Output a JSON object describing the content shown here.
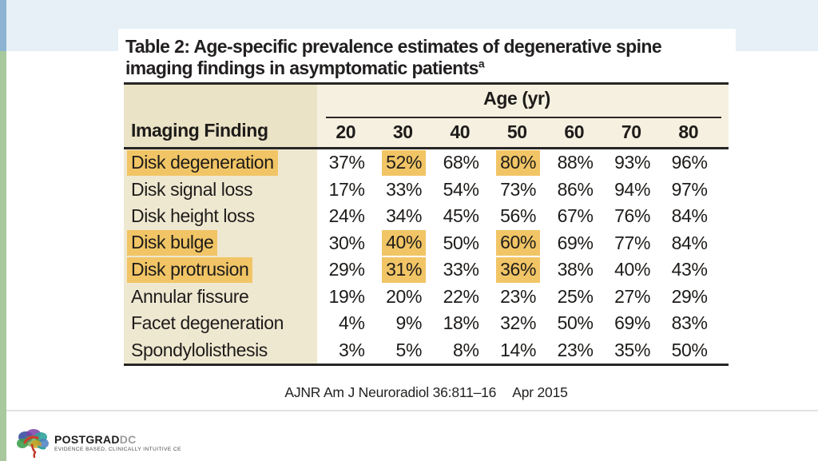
{
  "slide": {
    "table_title_line1": "Table 2: Age-specific prevalence estimates of degenerative spine",
    "table_title_line2": "imaging findings in asymptomatic patients",
    "table_title_footnote_marker": "a",
    "citation_journal": "AJNR Am J Neuroradiol 36:811–16",
    "citation_date": "Apr 2015"
  },
  "logo": {
    "icon": "brain-icon",
    "brand_primary": "POSTGRAD",
    "brand_secondary": "DC",
    "tagline": "EVIDENCE BASED, CLINICALLY INTUITIVE CE"
  },
  "colors": {
    "accent_strip_blue": "#8db4d3",
    "accent_strip_green": "#a8c89e",
    "top_band_blue": "#e6f0f6",
    "header_cream": "#f5f0e0",
    "finding_column_cream": "#efe8d1",
    "highlight_amber": "#f1c566"
  },
  "chart_data": {
    "type": "table",
    "title": "Table 2: Age-specific prevalence estimates of degenerative spine imaging findings in asymptomatic patients",
    "column_group_label": "Age (yr)",
    "row_header_label": "Imaging Finding",
    "columns": [
      "20",
      "30",
      "40",
      "50",
      "60",
      "70",
      "80"
    ],
    "rows": [
      {
        "finding": "Disk degeneration",
        "values": [
          "37%",
          "52%",
          "68%",
          "80%",
          "88%",
          "93%",
          "96%"
        ],
        "label_highlighted": true,
        "highlighted_value_indexes": [
          1,
          3
        ]
      },
      {
        "finding": "Disk signal loss",
        "values": [
          "17%",
          "33%",
          "54%",
          "73%",
          "86%",
          "94%",
          "97%"
        ],
        "label_highlighted": false,
        "highlighted_value_indexes": []
      },
      {
        "finding": "Disk height loss",
        "values": [
          "24%",
          "34%",
          "45%",
          "56%",
          "67%",
          "76%",
          "84%"
        ],
        "label_highlighted": false,
        "highlighted_value_indexes": []
      },
      {
        "finding": "Disk bulge",
        "values": [
          "30%",
          "40%",
          "50%",
          "60%",
          "69%",
          "77%",
          "84%"
        ],
        "label_highlighted": true,
        "highlighted_value_indexes": [
          1,
          3
        ]
      },
      {
        "finding": "Disk protrusion",
        "values": [
          "29%",
          "31%",
          "33%",
          "36%",
          "38%",
          "40%",
          "43%"
        ],
        "label_highlighted": true,
        "highlighted_value_indexes": [
          1,
          3
        ]
      },
      {
        "finding": "Annular fissure",
        "values": [
          "19%",
          "20%",
          "22%",
          "23%",
          "25%",
          "27%",
          "29%"
        ],
        "label_highlighted": false,
        "highlighted_value_indexes": []
      },
      {
        "finding": "Facet degeneration",
        "values": [
          "4%",
          "9%",
          "18%",
          "32%",
          "50%",
          "69%",
          "83%"
        ],
        "label_highlighted": false,
        "highlighted_value_indexes": []
      },
      {
        "finding": "Spondylolisthesis",
        "values": [
          "3%",
          "5%",
          "8%",
          "14%",
          "23%",
          "35%",
          "50%"
        ],
        "label_highlighted": false,
        "highlighted_value_indexes": []
      }
    ]
  }
}
